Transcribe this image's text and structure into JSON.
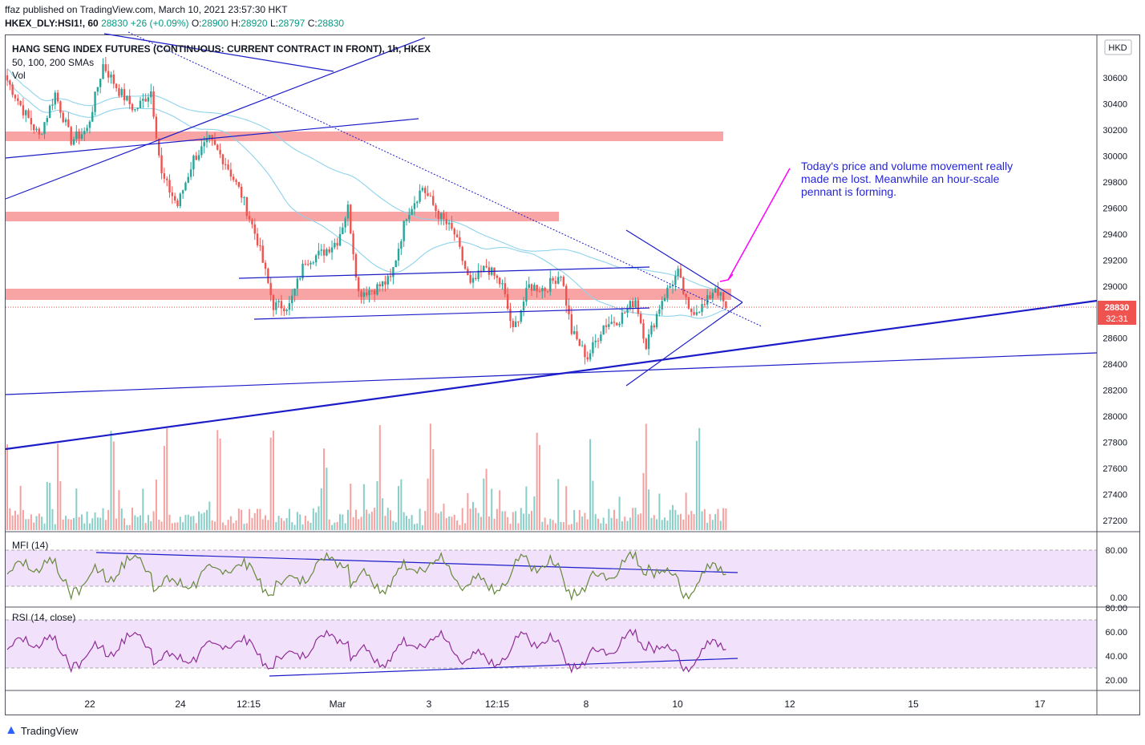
{
  "header": {
    "publisher_line": "ffaz published on TradingView.com, March 10, 2021 23:57:30 HKT",
    "symbol": "HKEX_DLY:HSI1!, 60",
    "last": "28830",
    "change": "+26 (+0.09%)",
    "o": "28900",
    "h": "28920",
    "l": "28797",
    "c": "28830"
  },
  "chart_title": "HANG SENG INDEX FUTURES (CONTINUOUS: CURRENT CONTRACT IN FRONT), 1h, HKEX",
  "sma_label": "50, 100, 200 SMAs",
  "vol_label": "Vol",
  "currency": "HKD",
  "annotation": "Today's price and volume movement really made me lost. Meanwhile an hour-scale pennant is forming.",
  "footer_brand": "TradingView",
  "colors": {
    "up": "#26a69a",
    "down": "#ef5350",
    "trend": "#1c1cc8",
    "zone": "#f8a4a4",
    "sma": "#8fd3ec",
    "arrow": "#ff00ff",
    "mfi_line": "#66883b",
    "rsi_line": "#8e2c96",
    "band": "#f2e1fb"
  },
  "chart_data": [
    {
      "type": "candlestick",
      "title": "HANG SENG INDEX FUTURES (CONTINUOUS: CURRENT CONTRACT IN FRONT), 1h, HKEX",
      "y_ticks": [
        30600,
        30400,
        30200,
        30000,
        29800,
        29600,
        29400,
        29200,
        29000,
        28600,
        28400,
        28200,
        28000,
        27800,
        27600,
        27400,
        27200
      ],
      "x_ticks": [
        "22",
        "24",
        "12:15",
        "Mar",
        "3",
        "12:15",
        "8",
        "10",
        "12",
        "15",
        "17"
      ],
      "last_price": "28830",
      "countdown": "32:31",
      "anchor_points": [
        {
          "i": 0,
          "p": 30580
        },
        {
          "i": 6,
          "p": 30350
        },
        {
          "i": 12,
          "p": 30150
        },
        {
          "i": 18,
          "p": 30480
        },
        {
          "i": 24,
          "p": 30120
        },
        {
          "i": 30,
          "p": 30200
        },
        {
          "i": 36,
          "p": 30700
        },
        {
          "i": 42,
          "p": 30500
        },
        {
          "i": 48,
          "p": 30350
        },
        {
          "i": 54,
          "p": 30500
        },
        {
          "i": 58,
          "p": 29850
        },
        {
          "i": 64,
          "p": 29620
        },
        {
          "i": 70,
          "p": 29980
        },
        {
          "i": 76,
          "p": 30120
        },
        {
          "i": 82,
          "p": 29950
        },
        {
          "i": 88,
          "p": 29700
        },
        {
          "i": 94,
          "p": 29350
        },
        {
          "i": 100,
          "p": 28850
        },
        {
          "i": 106,
          "p": 28850
        },
        {
          "i": 112,
          "p": 29200
        },
        {
          "i": 118,
          "p": 29250
        },
        {
          "i": 124,
          "p": 29350
        },
        {
          "i": 128,
          "p": 29600
        },
        {
          "i": 132,
          "p": 28950
        },
        {
          "i": 138,
          "p": 28980
        },
        {
          "i": 144,
          "p": 29050
        },
        {
          "i": 150,
          "p": 29550
        },
        {
          "i": 156,
          "p": 29760
        },
        {
          "i": 162,
          "p": 29550
        },
        {
          "i": 168,
          "p": 29400
        },
        {
          "i": 174,
          "p": 29000
        },
        {
          "i": 180,
          "p": 29150
        },
        {
          "i": 186,
          "p": 29000
        },
        {
          "i": 190,
          "p": 28650
        },
        {
          "i": 196,
          "p": 29000
        },
        {
          "i": 202,
          "p": 28980
        },
        {
          "i": 208,
          "p": 29100
        },
        {
          "i": 212,
          "p": 28650
        },
        {
          "i": 218,
          "p": 28450
        },
        {
          "i": 224,
          "p": 28700
        },
        {
          "i": 230,
          "p": 28750
        },
        {
          "i": 236,
          "p": 28900
        },
        {
          "i": 240,
          "p": 28550
        },
        {
          "i": 246,
          "p": 28900
        },
        {
          "i": 252,
          "p": 29100
        },
        {
          "i": 256,
          "p": 28800
        },
        {
          "i": 262,
          "p": 28850
        },
        {
          "i": 266,
          "p": 29000
        },
        {
          "i": 270,
          "p": 28830
        }
      ]
    },
    {
      "type": "line",
      "title": "MFI (14)",
      "y_ticks": [
        "80.00",
        "0.00"
      ]
    },
    {
      "type": "line",
      "title": "RSI (14, close)",
      "y_ticks": [
        "80.00",
        "60.00",
        "40.00",
        "20.00"
      ]
    }
  ]
}
